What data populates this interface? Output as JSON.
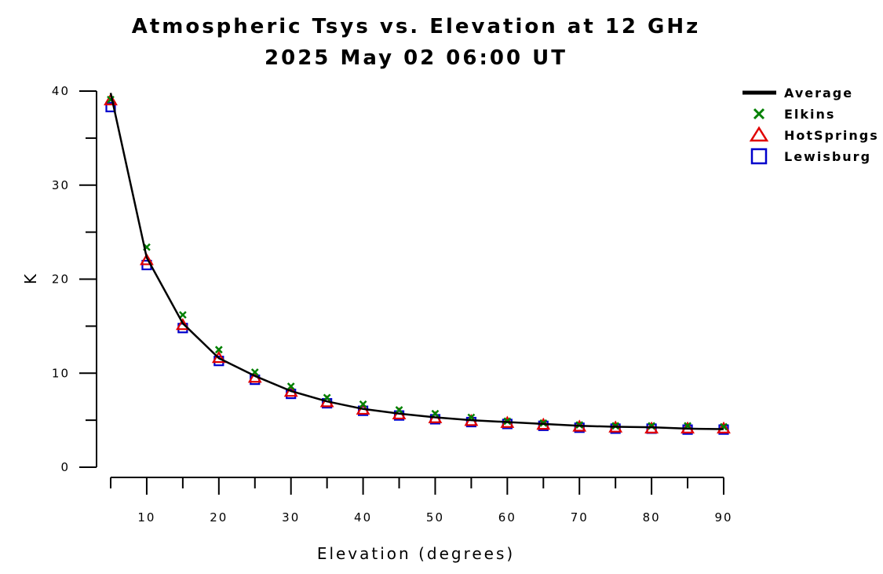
{
  "chart_data": {
    "type": "line",
    "title": "Atmospheric Tsys vs. Elevation at 12 GHz",
    "subtitle": "2025 May 02 06:00 UT",
    "xlabel": "Elevation (degrees)",
    "ylabel": "K",
    "xlim": [
      5,
      90
    ],
    "ylim": [
      0,
      40
    ],
    "x_ticks": [
      10,
      20,
      30,
      40,
      50,
      60,
      70,
      80,
      90
    ],
    "y_ticks": [
      0,
      10,
      20,
      30,
      40
    ],
    "grid": false,
    "legend_position": "top-right",
    "x": [
      5,
      10,
      15,
      20,
      25,
      30,
      35,
      40,
      45,
      50,
      55,
      60,
      65,
      70,
      75,
      80,
      85,
      90
    ],
    "series": [
      {
        "name": "Average",
        "style": "line",
        "color": "#000000",
        "values": [
          39.8,
          22.3,
          15.3,
          11.6,
          9.7,
          8.1,
          7.0,
          6.2,
          5.7,
          5.3,
          5.0,
          4.8,
          4.6,
          4.4,
          4.3,
          4.25,
          4.1,
          4.05
        ]
      },
      {
        "name": "Elkins",
        "style": "x-marker",
        "color": "#008000",
        "values": [
          39.1,
          23.4,
          16.2,
          12.5,
          10.1,
          8.6,
          7.4,
          6.7,
          6.1,
          5.7,
          5.3,
          4.9,
          4.7,
          4.5,
          4.4,
          4.4,
          4.4,
          4.3
        ]
      },
      {
        "name": "HotSprings",
        "style": "triangle-marker",
        "color": "#e00000",
        "values": [
          39.0,
          22.0,
          15.1,
          11.6,
          9.5,
          8.0,
          6.9,
          6.1,
          5.6,
          5.2,
          4.9,
          4.7,
          4.5,
          4.3,
          4.2,
          4.1,
          4.1,
          4.1
        ]
      },
      {
        "name": "Lewisburg",
        "style": "square-marker",
        "color": "#0000cc",
        "values": [
          38.3,
          21.5,
          14.8,
          11.3,
          9.3,
          7.8,
          6.8,
          6.0,
          5.5,
          5.1,
          4.8,
          4.6,
          4.4,
          4.2,
          4.1,
          4.1,
          4.0,
          4.0
        ]
      }
    ]
  }
}
